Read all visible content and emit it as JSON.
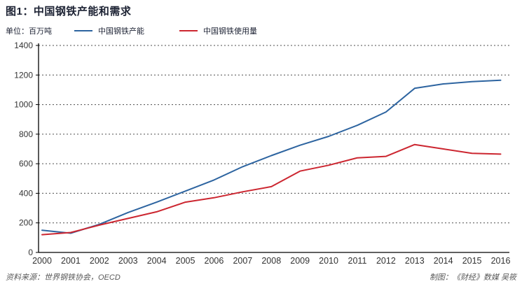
{
  "figure": {
    "title": "图1：中国钢铁产能和需求",
    "unit_label": "单位：百万吨",
    "source": "资料来源：世界钢铁协会，OECD",
    "credit": "制图：《财经》数媒 吴筱"
  },
  "legend": {
    "items": [
      {
        "label": "中国钢铁产能",
        "color": "#2d64a0"
      },
      {
        "label": "中国钢铁使用量",
        "color": "#cc2630"
      }
    ]
  },
  "colors": {
    "title": "#1c2233",
    "axis": "#000000",
    "grid": "#4d4d4d",
    "tick_text": "#333333",
    "footer_text": "#595959"
  },
  "chart_data": {
    "type": "line",
    "title": "图1：中国钢铁产能和需求",
    "ylabel": "百万吨",
    "xlabel": "",
    "x": [
      2000,
      2001,
      2002,
      2003,
      2004,
      2005,
      2006,
      2007,
      2008,
      2009,
      2010,
      2011,
      2012,
      2013,
      2014,
      2015,
      2016
    ],
    "series": [
      {
        "name": "中国钢铁产能",
        "color": "#2d64a0",
        "values": [
          150,
          130,
          190,
          270,
          340,
          415,
          490,
          580,
          655,
          725,
          785,
          860,
          950,
          1110,
          1140,
          1155,
          1165
        ]
      },
      {
        "name": "中国钢铁使用量",
        "color": "#cc2630",
        "values": [
          120,
          135,
          185,
          230,
          275,
          340,
          370,
          410,
          445,
          550,
          590,
          640,
          650,
          730,
          700,
          670,
          665
        ]
      }
    ],
    "ylim": [
      0,
      1400
    ],
    "ytick_step": 200,
    "grid": "horizontal-dotted",
    "legend_position": "top"
  }
}
